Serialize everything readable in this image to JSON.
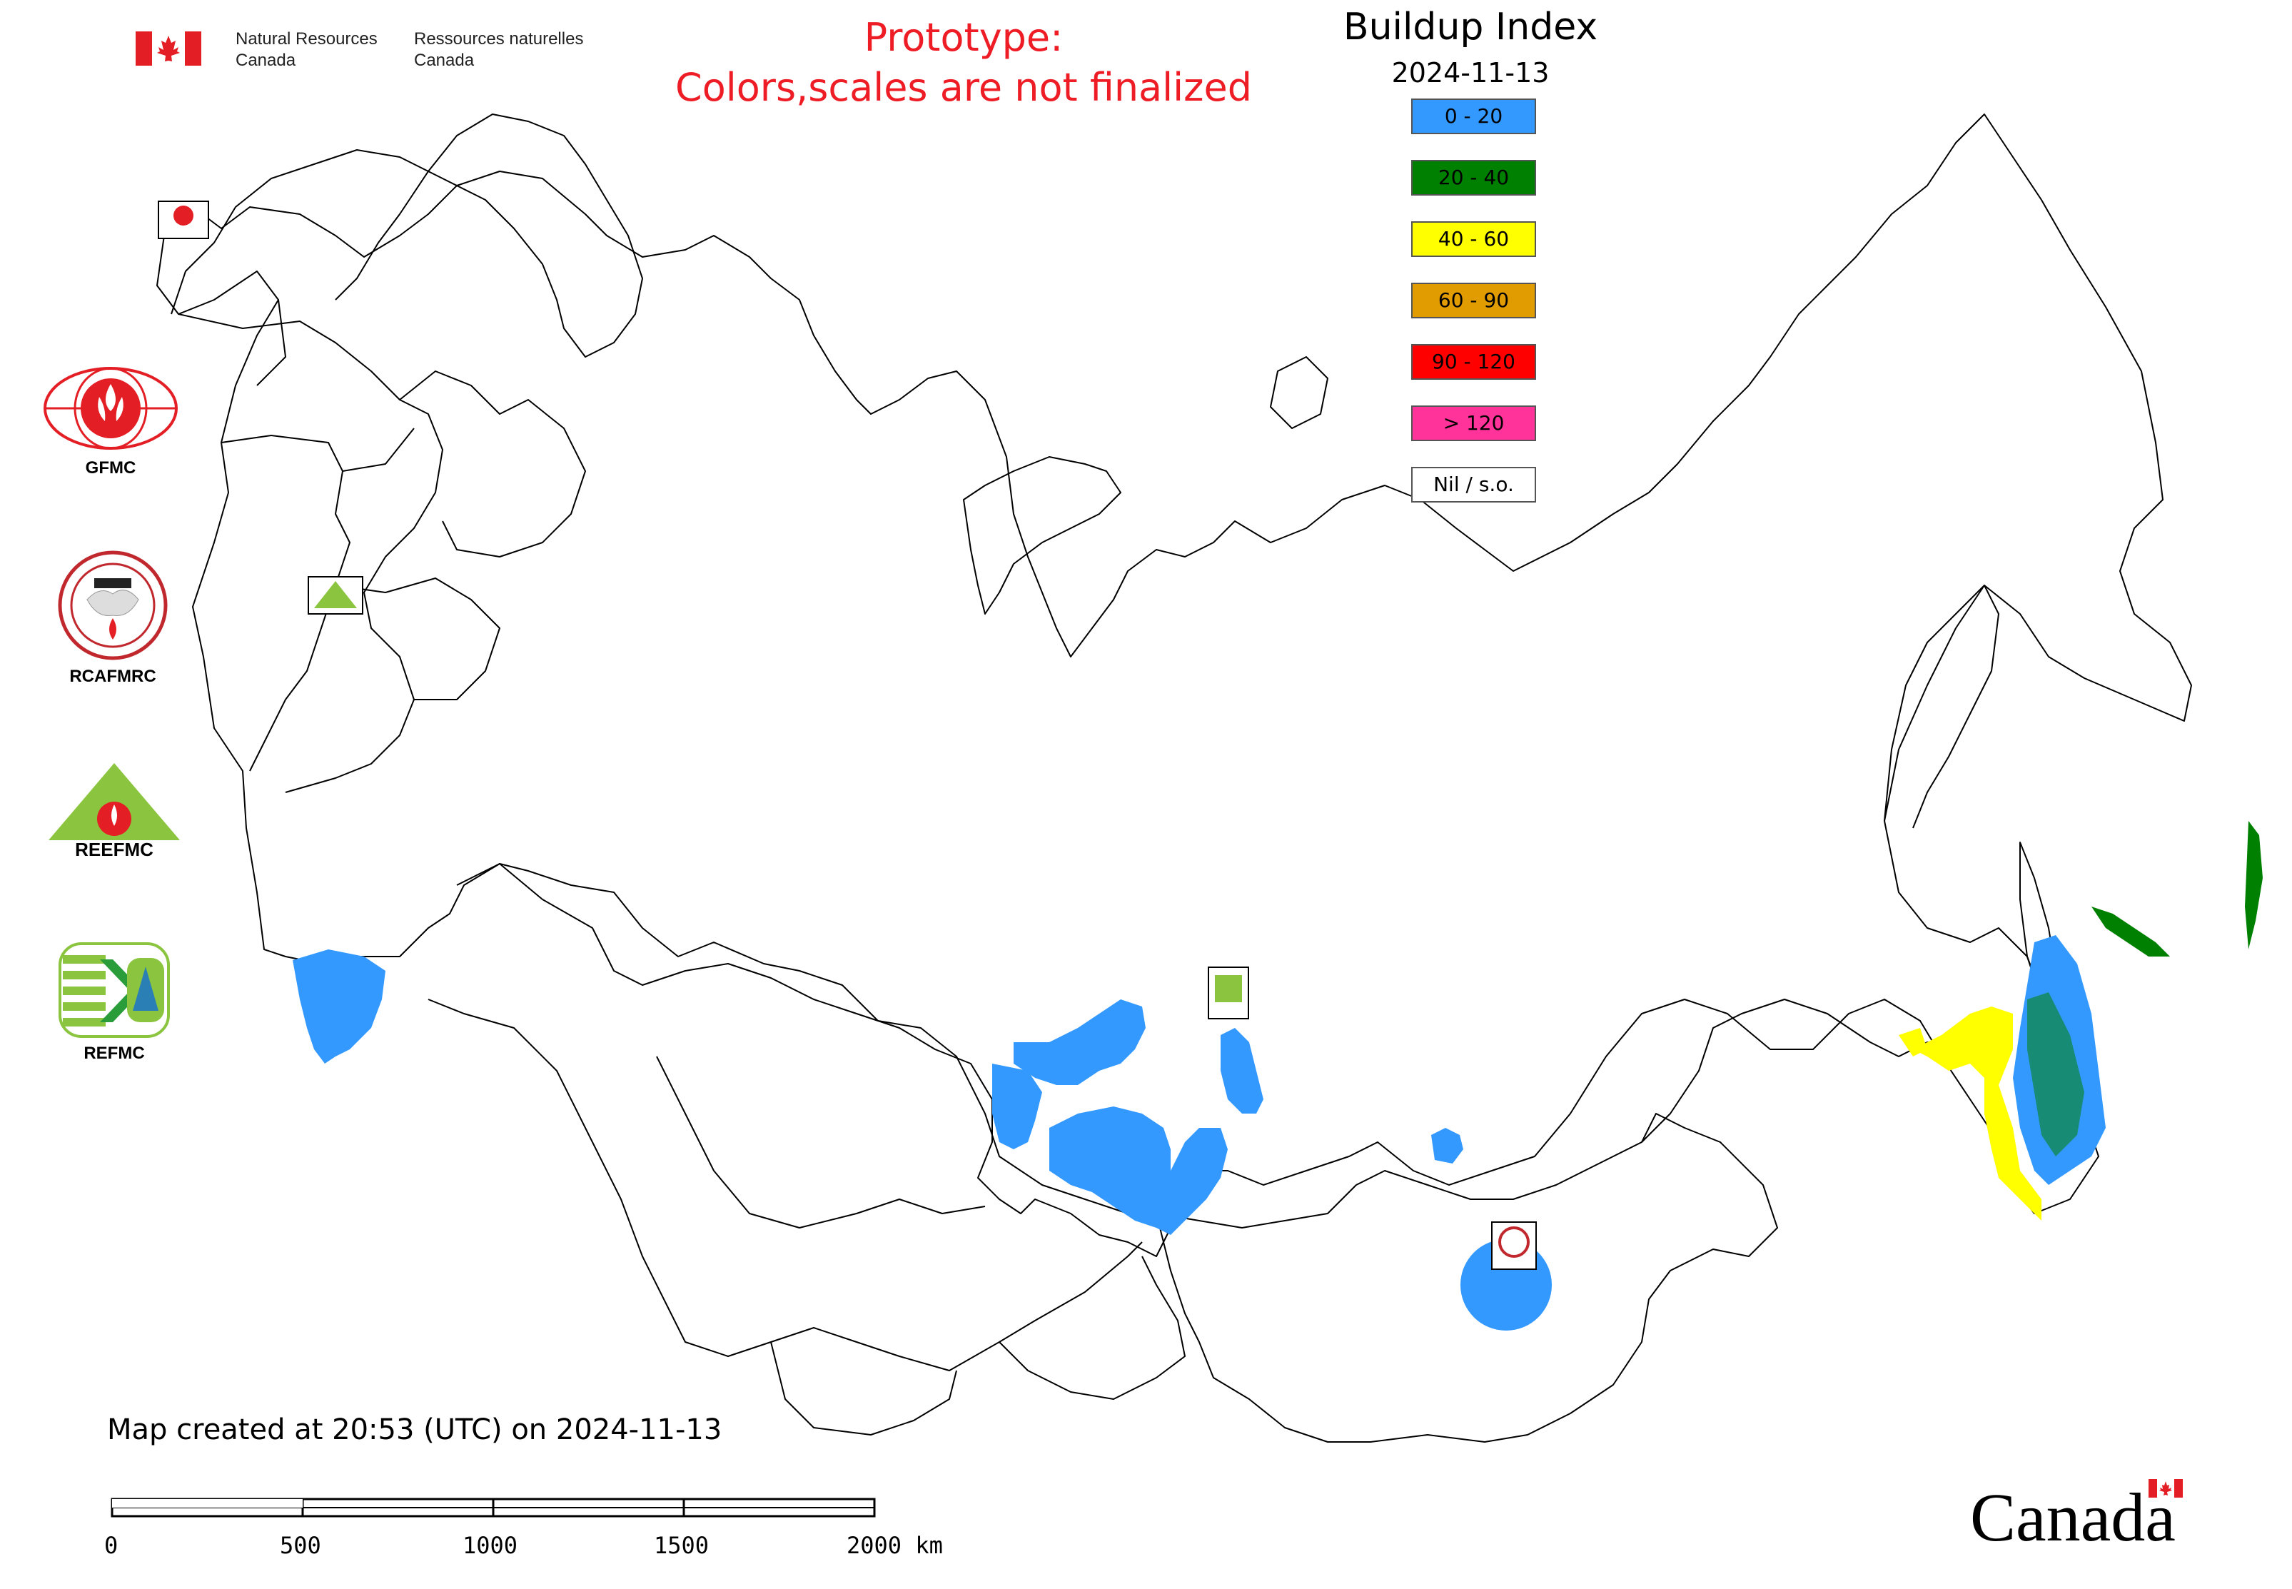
{
  "header": {
    "agency_en": "Natural Resources\nCanada",
    "agency_fr": "Ressources naturelles\nCanada",
    "prototype_line1": "Prototype:",
    "prototype_line2": "Colors,scales are not finalized"
  },
  "legend": {
    "title": "Buildup Index",
    "date": "2024-11-13",
    "classes": [
      {
        "label": "0 - 20",
        "color": "#3399ff"
      },
      {
        "label": "20 - 40",
        "color": "#008000"
      },
      {
        "label": "40 - 60",
        "color": "#ffff00"
      },
      {
        "label": "60 - 90",
        "color": "#e09c00"
      },
      {
        "label": "90 - 120",
        "color": "#ff0000"
      },
      {
        "label": "> 120",
        "color": "#ff3399"
      },
      {
        "label": "Nil / s.o.",
        "color": "#ffffff"
      }
    ]
  },
  "agencies": [
    {
      "label": "GFMC",
      "icon": "gfmc-flame-globe-icon"
    },
    {
      "label": "RCAFMRC",
      "icon": "rcafmrc-seal-icon"
    },
    {
      "label": "",
      "icon": "reefmc-triangle-icon",
      "wordmark": "REEFMC"
    },
    {
      "label": "REFMC",
      "icon": "refmc-sigma-icon"
    }
  ],
  "map_markers": [
    "GFMC",
    "REEFMC",
    "REFMC",
    "RCAFMRC"
  ],
  "footer": {
    "created": "Map created at 20:53 (UTC) on 2024-11-13",
    "scale_ticks": [
      "0",
      "500",
      "1000",
      "1500",
      "2000 km"
    ],
    "wordmark": "Canada"
  },
  "colors": {
    "prototype_text": "#ee1c25",
    "boundary": "#000000",
    "bui_low": "#3399ff",
    "bui_mid": "#008000",
    "bui_high": "#ffff00"
  }
}
